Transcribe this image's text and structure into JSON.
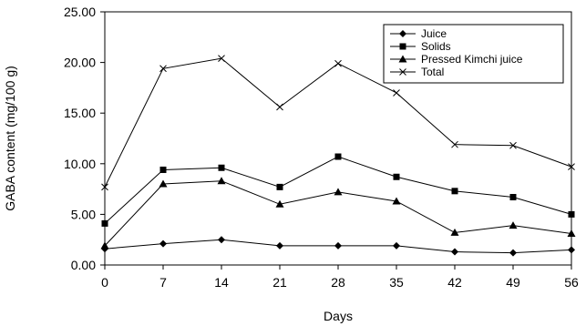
{
  "chart_data": {
    "type": "line",
    "title": "",
    "xlabel": "Days",
    "ylabel": "GABA content (mg/100 g)",
    "x": [
      0,
      7,
      14,
      21,
      28,
      35,
      42,
      49,
      56
    ],
    "x_ticks": [
      "0",
      "7",
      "14",
      "21",
      "28",
      "35",
      "42",
      "49",
      "56"
    ],
    "y_ticks": [
      "0.00",
      "5.00",
      "10.00",
      "15.00",
      "20.00",
      "25.00"
    ],
    "ylim": [
      0,
      25
    ],
    "grid": false,
    "legend_position": "top-right",
    "series": [
      {
        "name": "Juice",
        "marker": "diamond",
        "values": [
          1.6,
          2.1,
          2.5,
          1.9,
          1.9,
          1.9,
          1.3,
          1.2,
          1.5
        ]
      },
      {
        "name": "Solids",
        "marker": "square",
        "values": [
          4.1,
          9.4,
          9.6,
          7.7,
          10.7,
          8.7,
          7.3,
          6.7,
          5.0
        ]
      },
      {
        "name": "Pressed Kimchi juice",
        "marker": "triangle",
        "values": [
          1.9,
          8.0,
          8.3,
          6.0,
          7.2,
          6.3,
          3.2,
          3.9,
          3.1
        ]
      },
      {
        "name": "Total",
        "marker": "x",
        "values": [
          7.7,
          19.4,
          20.4,
          15.6,
          19.9,
          17.0,
          11.9,
          11.8,
          9.7
        ]
      }
    ]
  }
}
